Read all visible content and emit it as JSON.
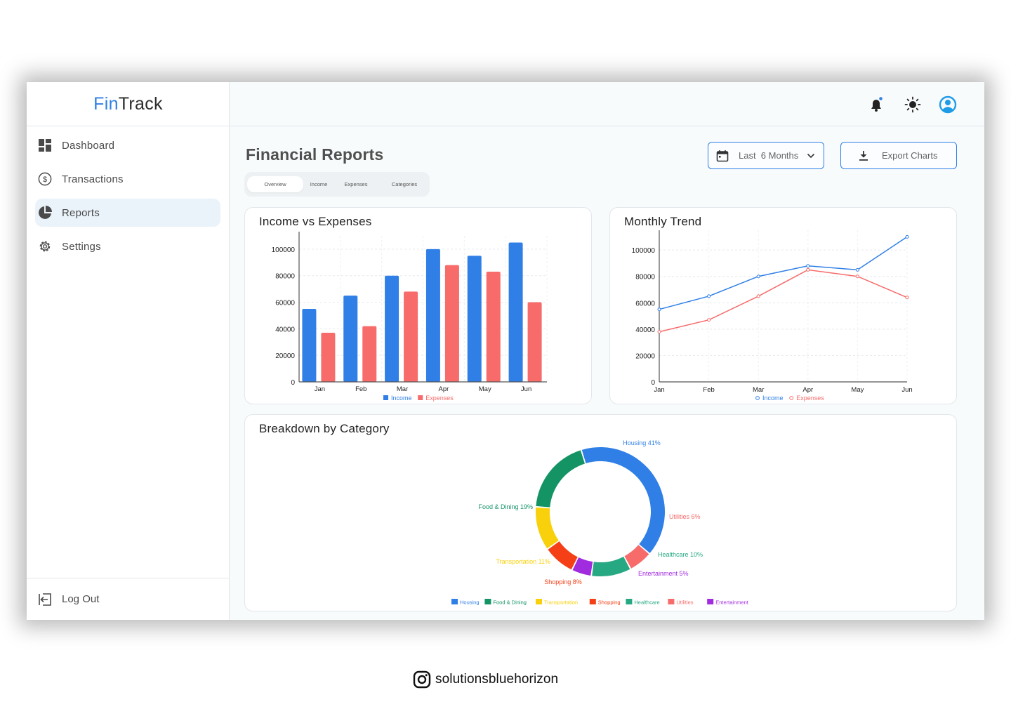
{
  "app": {
    "logo_part1": "Fin",
    "logo_part2": "Track"
  },
  "sidebar": {
    "items": [
      {
        "label": "Dashboard",
        "icon": "dashboard-icon"
      },
      {
        "label": "Transactions",
        "icon": "dollar-circle-icon"
      },
      {
        "label": "Reports",
        "icon": "pie-chart-icon"
      },
      {
        "label": "Settings",
        "icon": "gear-icon"
      }
    ],
    "active_index": 2,
    "logout_label": "Log Out"
  },
  "header": {
    "icons": [
      "bell-icon",
      "sun-icon",
      "user-avatar-icon"
    ]
  },
  "page": {
    "title": "Financial Reports",
    "tabs": [
      "Overview",
      "Income",
      "Expenses",
      "Categories"
    ],
    "active_tab": 0,
    "date_range_label": "Last  6 Months",
    "export_label": "Export Charts"
  },
  "colors": {
    "accent": "#2f7fe6",
    "income": "#2f7fe6",
    "expenses": "#f76b6b"
  },
  "chart_data": [
    {
      "type": "bar",
      "title": "Income vs Expenses",
      "categories": [
        "Jan",
        "Feb",
        "Mar",
        "Apr",
        "May",
        "Jun"
      ],
      "series": [
        {
          "name": "Income",
          "color": "#2f7fe6",
          "values": [
            55000,
            65000,
            80000,
            100000,
            95000,
            105000
          ]
        },
        {
          "name": "Expenses",
          "color": "#f76b6b",
          "values": [
            37000,
            42000,
            68000,
            88000,
            83000,
            60000
          ]
        }
      ],
      "yticks": [
        0,
        20000,
        40000,
        60000,
        80000,
        100000
      ],
      "ylim": [
        0,
        110000
      ],
      "grid": true,
      "legend": "bottom"
    },
    {
      "type": "line",
      "title": "Monthly Trend",
      "categories": [
        "Jan",
        "Feb",
        "Mar",
        "Apr",
        "May",
        "Jun"
      ],
      "series": [
        {
          "name": "Income",
          "color": "#2f7fe6",
          "values": [
            55000,
            65000,
            80000,
            88000,
            85000,
            110000
          ]
        },
        {
          "name": "Expenses",
          "color": "#f76b6b",
          "values": [
            38000,
            47000,
            65000,
            85000,
            80000,
            64000
          ]
        }
      ],
      "yticks": [
        0,
        20000,
        40000,
        60000,
        80000,
        100000
      ],
      "ylim": [
        0,
        115000
      ],
      "grid": true,
      "legend": "bottom"
    },
    {
      "type": "pie",
      "title": "Breakdown by Category",
      "slices": [
        {
          "label": "Housing",
          "value": 41,
          "color": "#2f7fe6",
          "callout": "Housing 41%"
        },
        {
          "label": "Utilities",
          "value": 6,
          "color": "#f76b6b",
          "callout": "Utilities 6%"
        },
        {
          "label": "Healthcare",
          "value": 10,
          "color": "#26a882",
          "callout": "Healthcare 10%"
        },
        {
          "label": "Entertainment",
          "value": 5,
          "color": "#a02bdf",
          "callout": "Entertainment 5%"
        },
        {
          "label": "Shopping",
          "value": 8,
          "color": "#f43f17",
          "callout": "Shopping 8%"
        },
        {
          "label": "Transportation",
          "value": 11,
          "color": "#f8d10c",
          "callout": "Transportation 11%"
        },
        {
          "label": "Food & Dining",
          "value": 19,
          "color": "#149465",
          "callout": "Food & Dining 19%"
        }
      ],
      "legend_order": [
        "Housing",
        "Food & Dining",
        "Transportation",
        "Shopping",
        "Healthcare",
        "Utilities",
        "Entertainment"
      ],
      "legend": "bottom"
    }
  ],
  "watermark": {
    "icon": "instagram-icon",
    "text": "solutionsbluehorizon"
  }
}
